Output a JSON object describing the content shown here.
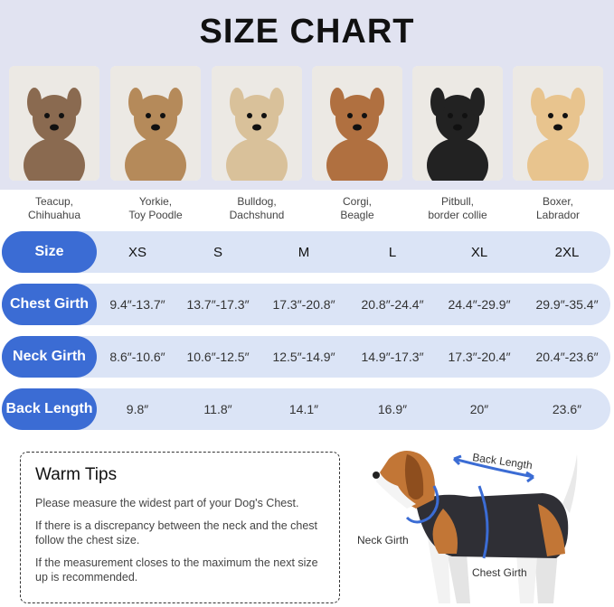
{
  "title": "SIZE CHART",
  "breeds": [
    {
      "line1": "Teacup,",
      "line2": "Chihuahua",
      "color": "#8a6a50"
    },
    {
      "line1": "Yorkie,",
      "line2": "Toy Poodle",
      "color": "#b58a5a"
    },
    {
      "line1": "Bulldog,",
      "line2": "Dachshund",
      "color": "#d9c19a"
    },
    {
      "line1": "Corgi,",
      "line2": "Beagle",
      "color": "#b07040"
    },
    {
      "line1": "Pitbull,",
      "line2": "border collie",
      "color": "#222222"
    },
    {
      "line1": "Boxer,",
      "line2": "Labrador",
      "color": "#e8c48e"
    }
  ],
  "rows": [
    {
      "label": "Size",
      "values": [
        "XS",
        "S",
        "M",
        "L",
        "XL",
        "2XL"
      ]
    },
    {
      "label": "Chest Girth",
      "values": [
        "9.4″-13.7″",
        "13.7″-17.3″",
        "17.3″-20.8″",
        "20.8″-24.4″",
        "24.4″-29.9″",
        "29.9″-35.4″"
      ]
    },
    {
      "label": "Neck Girth",
      "values": [
        "8.6″-10.6″",
        "10.6″-12.5″",
        "12.5″-14.9″",
        "14.9″-17.3″",
        "17.3″-20.4″",
        "20.4″-23.6″"
      ]
    },
    {
      "label": "Back Length",
      "values": [
        "9.8″",
        "11.8″",
        "14.1″",
        "16.9″",
        "20″",
        "23.6″"
      ]
    }
  ],
  "tips": {
    "title": "Warm Tips",
    "items": [
      "Please measure the widest part of your Dog's Chest.",
      "If there is a discrepancy between the neck and the chest follow the chest size.",
      "If the measurement closes to the maximum the next size up is recommended."
    ]
  },
  "diagram": {
    "back_length": "Back Length",
    "neck_girth": "Neck Girth",
    "chest_girth": "Chest Girth"
  },
  "accent": "#3b6cd4"
}
